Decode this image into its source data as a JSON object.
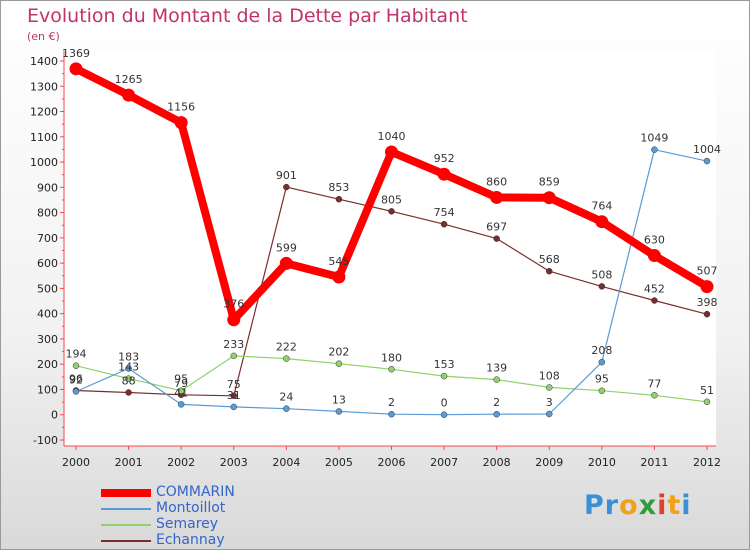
{
  "chart_data": {
    "type": "line",
    "title": "Evolution du Montant de la Dette par Habitant",
    "unit": "(en €)",
    "x": [
      "2000",
      "2001",
      "2002",
      "2003",
      "2004",
      "2005",
      "2006",
      "2007",
      "2008",
      "2009",
      "2010",
      "2011",
      "2012"
    ],
    "yticks": [
      "-100",
      "0",
      "100",
      "200",
      "300",
      "400",
      "500",
      "600",
      "700",
      "800",
      "900",
      "1000",
      "1100",
      "1200",
      "1300",
      "1400"
    ],
    "ylim": [
      -100,
      1400
    ],
    "grid": false,
    "legend_position": "bottom-left",
    "series": [
      {
        "name": "COMMARIN",
        "color": "#ff0000",
        "values": [
          1369,
          1265,
          1156,
          376,
          599,
          545,
          1040,
          952,
          860,
          859,
          764,
          630,
          507
        ],
        "labels": [
          "1369",
          "1265",
          "1156",
          "376",
          "599",
          "545",
          "1040",
          "952",
          "860",
          "859",
          "764",
          "630",
          "507"
        ]
      },
      {
        "name": "Montoillot",
        "color": "#5b9bd5",
        "values": [
          92,
          183,
          41,
          31,
          24,
          13,
          2,
          0,
          2,
          3,
          208,
          1049,
          1004
        ],
        "labels": [
          "92",
          "183",
          "41",
          "31",
          "24",
          "13",
          "2",
          "0",
          "2",
          "3",
          "208",
          "1049",
          "1004"
        ]
      },
      {
        "name": "Semarey",
        "color": "#8fd16a",
        "values": [
          194,
          143,
          95,
          233,
          222,
          202,
          180,
          153,
          139,
          108,
          95,
          77,
          51
        ],
        "labels": [
          "194",
          "143",
          "95",
          "233",
          "222",
          "202",
          "180",
          "153",
          "139",
          "108",
          "95",
          "77",
          "51"
        ]
      },
      {
        "name": "Echannay",
        "color": "#7a2d2d",
        "values": [
          96,
          88,
          79,
          75,
          901,
          853,
          805,
          754,
          697,
          568,
          508,
          452,
          398
        ],
        "labels": [
          "96",
          "88",
          "79",
          "75",
          "901",
          "853",
          "805",
          "754",
          "697",
          "568",
          "508",
          "452",
          "398"
        ]
      }
    ]
  },
  "brand": {
    "letters": [
      "P",
      "r",
      "o",
      "x",
      "i",
      "t",
      "i"
    ],
    "colors": [
      "#3a8fd6",
      "#3a8fd6",
      "#f2a11a",
      "#2f9e3a",
      "#e0402a",
      "#f2a11a",
      "#3a8fd6"
    ]
  }
}
